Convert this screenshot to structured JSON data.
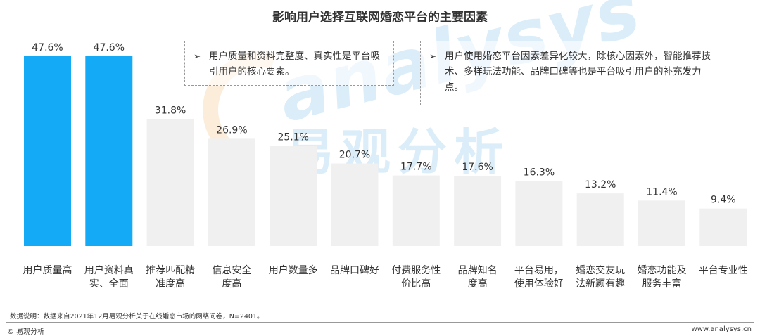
{
  "chart_data": {
    "type": "bar",
    "title": "影响用户选择互联网婚恋平台的主要因素",
    "categories": [
      [
        "用户质量高"
      ],
      [
        "用户资料真",
        "实、全面"
      ],
      [
        "推荐匹配精",
        "准度高"
      ],
      [
        "信息安全",
        "度高"
      ],
      [
        "用户数量多"
      ],
      [
        "品牌口碑好"
      ],
      [
        "付费服务性",
        "价比高"
      ],
      [
        "品牌知名",
        "度高"
      ],
      [
        "平台易用，",
        "使用体验好"
      ],
      [
        "婚恋交友玩",
        "法新颖有趣"
      ],
      [
        "婚恋功能及",
        "服务丰富"
      ],
      [
        "平台专业性"
      ]
    ],
    "values": [
      47.6,
      47.6,
      31.8,
      26.9,
      25.1,
      20.7,
      17.7,
      17.6,
      16.3,
      13.2,
      11.4,
      9.4
    ],
    "value_labels": [
      "47.6%",
      "47.6%",
      "31.8%",
      "26.9%",
      "25.1%",
      "20.7%",
      "17.7%",
      "17.6%",
      "16.3%",
      "13.2%",
      "11.4%",
      "9.4%"
    ],
    "highlighted": [
      0,
      1
    ],
    "ylim": [
      0,
      47.6
    ],
    "grid": false,
    "colors": {
      "highlight": "#14aaf5",
      "normal": "#f0f0f0"
    }
  },
  "callouts": [
    {
      "arrow": "➢",
      "text": "用户质量和资料完整度、真实性是平台吸引用户的核心要素。"
    },
    {
      "arrow": "➢",
      "text": "用户使用婚恋平台因素差异化较大，除核心因素外，智能推荐技术、多样玩法功能、品牌口碑等也是平台吸引用户的补充发力点。"
    }
  ],
  "watermark": {
    "en": "analysys",
    "cn": "易观分析"
  },
  "footnote": "数据说明：数据来自2021年12月易观分析关于在线婚恋市场的网络问卷，N=2401。",
  "brand": "© 易观分析",
  "site": "www.analysys.cn"
}
